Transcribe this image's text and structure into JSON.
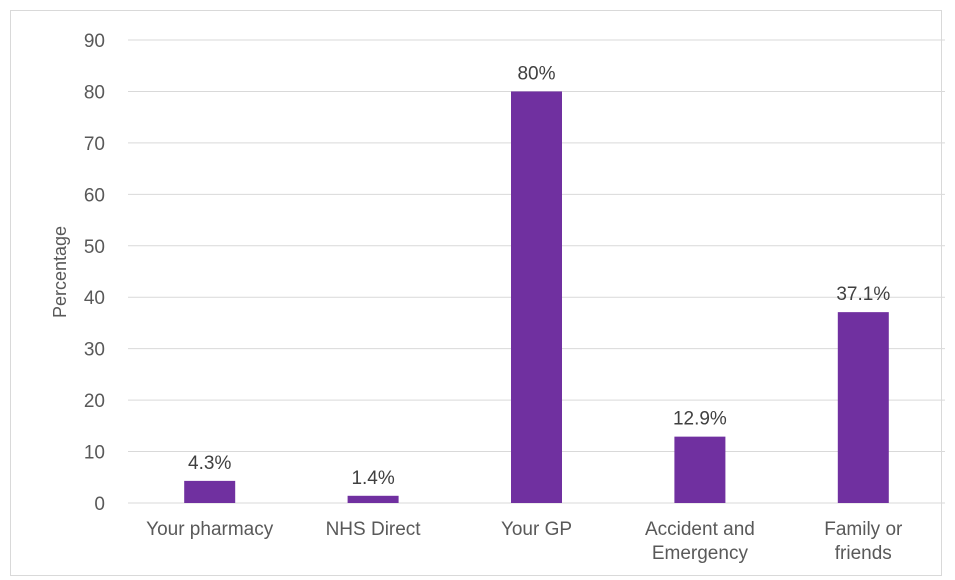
{
  "chart_data": {
    "type": "bar",
    "categories": [
      [
        "Your pharmacy"
      ],
      [
        "NHS Direct"
      ],
      [
        "Your GP"
      ],
      [
        "Accident and",
        "Emergency"
      ],
      [
        "Family or",
        "friends"
      ]
    ],
    "values": [
      4.3,
      1.4,
      80,
      12.9,
      37.1
    ],
    "data_labels": [
      "4.3%",
      "1.4%",
      "80%",
      "12.9%",
      "37.1%"
    ],
    "title": "",
    "xlabel": "",
    "ylabel": "Percentage",
    "ylim": [
      0,
      90
    ],
    "yticks": [
      0,
      10,
      20,
      30,
      40,
      50,
      60,
      70,
      80,
      90
    ],
    "grid": true,
    "legend": "none",
    "bar_color": "#7030a0",
    "grid_color": "#d9d9d9"
  }
}
